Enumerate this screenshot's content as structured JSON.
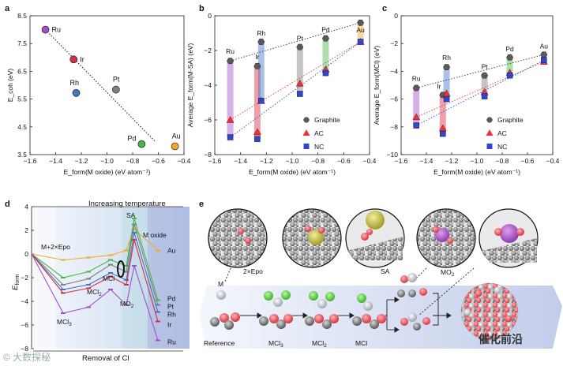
{
  "panels": {
    "a": "a",
    "b": "b",
    "c": "c",
    "d": "d",
    "e": "e"
  },
  "colors": {
    "graphite": "#8c8c8c",
    "ac": "#e8343a",
    "nc": "#3446c8",
    "Ru": "#a44fd0",
    "Ir": "#d72f45",
    "Rh": "#4573c8",
    "Pt": "#7f7f7f",
    "Pd": "#44b84a",
    "Au": "#f0a92a"
  },
  "chart_data": [
    {
      "id": "a",
      "type": "scatter",
      "xlabel": "E_form(M oxide) (eV atom⁻¹)",
      "ylabel": "E_coh (eV)",
      "xlim": [
        -1.6,
        -0.4
      ],
      "ylim": [
        3.5,
        8.5
      ],
      "xticks": [
        "−1.6",
        "−1.4",
        "−1.2",
        "−1.0",
        "−0.8",
        "−0.6",
        "−0.4"
      ],
      "xtick_values": [
        -1.6,
        -1.4,
        -1.2,
        -1.0,
        -0.8,
        -0.6,
        -0.4
      ],
      "yticks": [
        "3.5",
        "4.5",
        "5.5",
        "6.5",
        "7.5",
        "8.5"
      ],
      "ytick_values": [
        3.5,
        4.5,
        5.5,
        6.5,
        7.5,
        8.5
      ],
      "points": [
        {
          "label": "Ru",
          "x": -1.48,
          "y": 8.0
        },
        {
          "label": "Ir",
          "x": -1.26,
          "y": 6.93
        },
        {
          "label": "Rh",
          "x": -1.24,
          "y": 5.72
        },
        {
          "label": "Pt",
          "x": -0.93,
          "y": 5.84
        },
        {
          "label": "Pd",
          "x": -0.73,
          "y": 3.88
        },
        {
          "label": "Au",
          "x": -0.47,
          "y": 3.8
        }
      ],
      "trend": {
        "x": [
          -1.48,
          -0.62
        ],
        "y": [
          8.0,
          3.95
        ]
      }
    },
    {
      "id": "b",
      "type": "scatter",
      "xlabel": "E_form(M oxide) (eV atom⁻¹)",
      "ylabel": "Average E_form(M-SA) (eV)",
      "xlim": [
        -1.6,
        -0.4
      ],
      "ylim": [
        -8,
        0
      ],
      "xticks": [
        "−1.6",
        "−1.4",
        "−1.2",
        "−1.0",
        "−0.8",
        "−0.6",
        "−0.4"
      ],
      "xtick_values": [
        -1.6,
        -1.4,
        -1.2,
        -1.0,
        -0.8,
        -0.6,
        -0.4
      ],
      "yticks": [
        "−8",
        "−6",
        "−4",
        "−2",
        "0"
      ],
      "ytick_values": [
        -8,
        -6,
        -4,
        -2,
        0
      ],
      "legend": [
        "Graphite",
        "AC",
        "NC"
      ],
      "metals": [
        "Ru",
        "Ir",
        "Rh",
        "Pt",
        "Pd",
        "Au"
      ],
      "x": [
        -1.48,
        -1.27,
        -1.24,
        -0.94,
        -0.74,
        -0.47
      ],
      "series": [
        {
          "name": "Graphite",
          "values": [
            -2.6,
            -2.9,
            -1.5,
            -1.8,
            -1.3,
            -0.4
          ]
        },
        {
          "name": "AC",
          "values": [
            -6.0,
            -6.7,
            -4.9,
            -3.9,
            -3.1,
            -1.5
          ]
        },
        {
          "name": "NC",
          "values": [
            -7.0,
            -7.1,
            -4.9,
            -4.5,
            -3.3,
            -1.5
          ]
        }
      ]
    },
    {
      "id": "c",
      "type": "scatter",
      "xlabel": "E_form(M oxide) (eV atom⁻¹)",
      "ylabel": "Average E_form(MCl) (eV)",
      "xlim": [
        -1.6,
        -0.4
      ],
      "ylim": [
        -10,
        0
      ],
      "xticks": [
        "−1.6",
        "−1.4",
        "−1.2",
        "−1.0",
        "−0.8",
        "−0.6",
        "−0.4"
      ],
      "xtick_values": [
        -1.6,
        -1.4,
        -1.2,
        -1.0,
        -0.8,
        -0.6,
        -0.4
      ],
      "yticks": [
        "−10",
        "−8",
        "−6",
        "−4",
        "−2",
        "0"
      ],
      "ytick_values": [
        -10,
        -8,
        -6,
        -4,
        -2,
        0
      ],
      "legend": [
        "Graphite",
        "AC",
        "NC"
      ],
      "metals": [
        "Ru",
        "Ir",
        "Rh",
        "Pt",
        "Pd",
        "Au"
      ],
      "x": [
        -1.48,
        -1.27,
        -1.24,
        -0.94,
        -0.74,
        -0.47
      ],
      "series": [
        {
          "name": "Graphite",
          "values": [
            -5.2,
            -5.7,
            -3.7,
            -4.3,
            -3.0,
            -2.8
          ]
        },
        {
          "name": "AC",
          "values": [
            -7.3,
            -8.1,
            -5.6,
            -5.5,
            -4.1,
            -3.3
          ]
        },
        {
          "name": "NC",
          "values": [
            -7.9,
            -8.5,
            -6.0,
            -5.8,
            -4.3,
            -3.2
          ]
        }
      ]
    },
    {
      "id": "d",
      "type": "line",
      "title": "Increasing temperature",
      "xlabel": "Removal of Cl",
      "ylabel": "E_form",
      "ylim": [
        -8,
        4
      ],
      "yticks": [
        "−8",
        "−6",
        "−4",
        "−2",
        "0",
        "2",
        "4"
      ],
      "ytick_values": [
        -8,
        -6,
        -4,
        -2,
        0,
        2,
        4
      ],
      "stage_labels": [
        "M+2×Epo",
        "MCl3",
        "MCl2",
        "MCl",
        "MO2",
        "SA",
        "M oxide"
      ],
      "x": [
        0,
        1,
        2,
        3,
        4,
        5,
        6
      ],
      "series": [
        {
          "name": "Au",
          "values": [
            0,
            -0.5,
            -0.3,
            -0.1,
            0.3,
            2.1,
            0.3
          ]
        },
        {
          "name": "Pd",
          "values": [
            0,
            -2.0,
            -1.5,
            -0.5,
            -1.0,
            3.0,
            -3.9
          ]
        },
        {
          "name": "Pt",
          "values": [
            0,
            -2.6,
            -2.1,
            -0.9,
            -1.5,
            2.5,
            -4.3
          ]
        },
        {
          "name": "Rh",
          "values": [
            0,
            -3.0,
            -2.6,
            -1.6,
            -2.2,
            1.8,
            -4.9
          ]
        },
        {
          "name": "Ir",
          "values": [
            0,
            -3.3,
            -2.9,
            -1.9,
            -2.6,
            1.2,
            -5.7
          ]
        },
        {
          "name": "Ru",
          "values": [
            0,
            -5.0,
            -4.5,
            -3.0,
            -4.3,
            -1.0,
            -7.3
          ]
        }
      ]
    }
  ],
  "panel_d": {
    "header": "Increasing temperature",
    "footer": "Removal of Cl",
    "ylabel_main": "E",
    "ylabel_sub": "form",
    "stage_m2epo": "M+2×Epo",
    "stage_mcl3": "MCl",
    "stage_mcl3_sub": "3",
    "stage_mcl2": "MCl",
    "stage_mcl2_sub": "2",
    "stage_mcl": "MCl",
    "stage_mo2": "MO",
    "stage_mo2_sub": "2",
    "stage_sa": "SA",
    "stage_moxide": "M oxide"
  },
  "panel_e": {
    "label_m": "M",
    "label_2xepo": "2×Epo",
    "label_sa": "SA",
    "label_mo2": "MO",
    "label_mo2_sub": "2",
    "steps": [
      "Reference",
      "MCl",
      "MCl",
      "MCl"
    ],
    "steps_sub": [
      "",
      "3",
      "2",
      ""
    ]
  },
  "watermarks": {
    "left": "© 大数探秘",
    "right": "催化前沿"
  }
}
